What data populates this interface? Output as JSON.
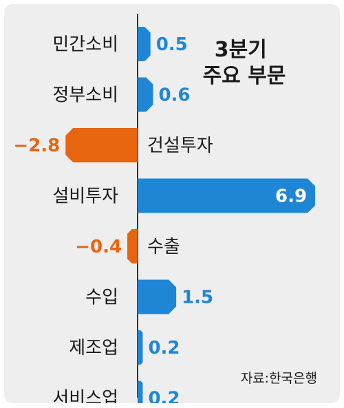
{
  "chart_data": {
    "type": "bar",
    "orientation": "horizontal",
    "title": "3분기\n주요 부문",
    "source": "자료:한국은행",
    "categories": [
      "민간소비",
      "정부소비",
      "건설투자",
      "설비투자",
      "수출",
      "수입",
      "제조업",
      "서비스업"
    ],
    "values": [
      0.5,
      0.6,
      -2.8,
      6.9,
      -0.4,
      1.5,
      0.2,
      0.2
    ],
    "value_labels": [
      "0.5",
      "0.6",
      "−2.8",
      "6.9",
      "−0.4",
      "1.5",
      "0.2",
      "0.2"
    ],
    "colors": {
      "positive": "#1f86d6",
      "negative": "#e8650f",
      "axis": "#333333",
      "background": "#eeeeef"
    }
  }
}
